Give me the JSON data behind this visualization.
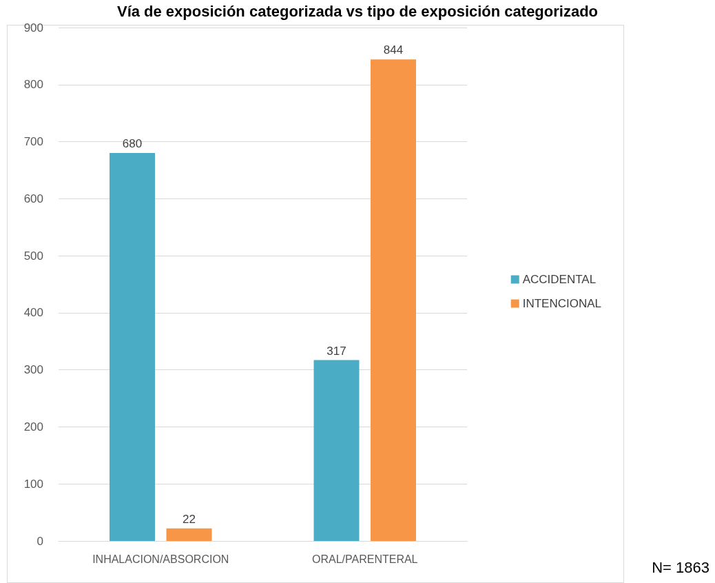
{
  "chart_data": {
    "type": "bar",
    "title": "Vía de exposición categorizada vs tipo de exposición categorizado",
    "categories": [
      "INHALACION/ABSORCION",
      "ORAL/PARENTERAL"
    ],
    "series": [
      {
        "name": "ACCIDENTAL",
        "color": "#4bacc6",
        "values": [
          680,
          317
        ]
      },
      {
        "name": "INTENCIONAL",
        "color": "#f79646",
        "values": [
          22,
          844
        ]
      }
    ],
    "ylim": [
      0,
      900
    ],
    "yticks": [
      0,
      100,
      200,
      300,
      400,
      500,
      600,
      700,
      800,
      900
    ],
    "grid": "y",
    "legend": "right",
    "data_labels": true,
    "annotations": [
      "N= 1863"
    ]
  }
}
